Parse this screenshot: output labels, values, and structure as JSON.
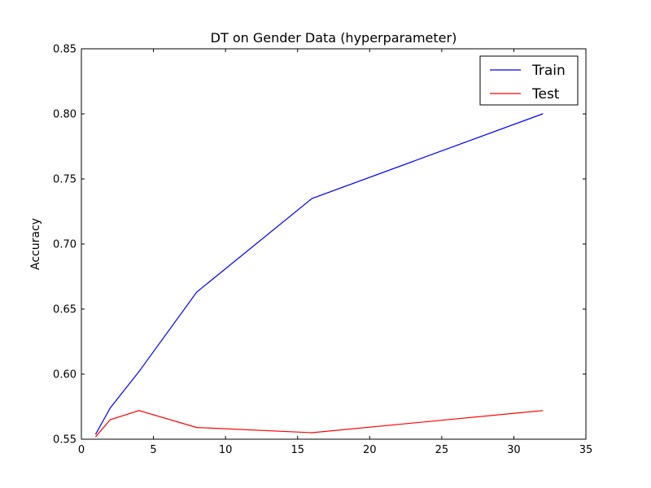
{
  "chart_data": {
    "type": "line",
    "title": "DT on Gender Data (hyperparameter)",
    "xlabel": "",
    "ylabel": "Accuracy",
    "xlim": [
      0,
      35
    ],
    "ylim": [
      0.55,
      0.85
    ],
    "xticks": [
      0,
      5,
      10,
      15,
      20,
      25,
      30,
      35
    ],
    "yticks": [
      0.55,
      0.6,
      0.65,
      0.7,
      0.75,
      0.8,
      0.85
    ],
    "xtick_labels": [
      "0",
      "5",
      "10",
      "15",
      "20",
      "25",
      "30",
      "35"
    ],
    "ytick_labels": [
      "0.55",
      "0.60",
      "0.65",
      "0.70",
      "0.75",
      "0.80",
      "0.85"
    ],
    "grid": false,
    "legend_position": "top-right",
    "series": [
      {
        "name": "Train",
        "color": "#0000ff",
        "x": [
          1,
          2,
          4,
          8,
          16,
          32
        ],
        "y": [
          0.554,
          0.574,
          0.602,
          0.663,
          0.735,
          0.8
        ]
      },
      {
        "name": "Test",
        "color": "#ff0000",
        "x": [
          1,
          2,
          4,
          8,
          16,
          32
        ],
        "y": [
          0.552,
          0.565,
          0.572,
          0.559,
          0.555,
          0.572
        ]
      }
    ]
  }
}
